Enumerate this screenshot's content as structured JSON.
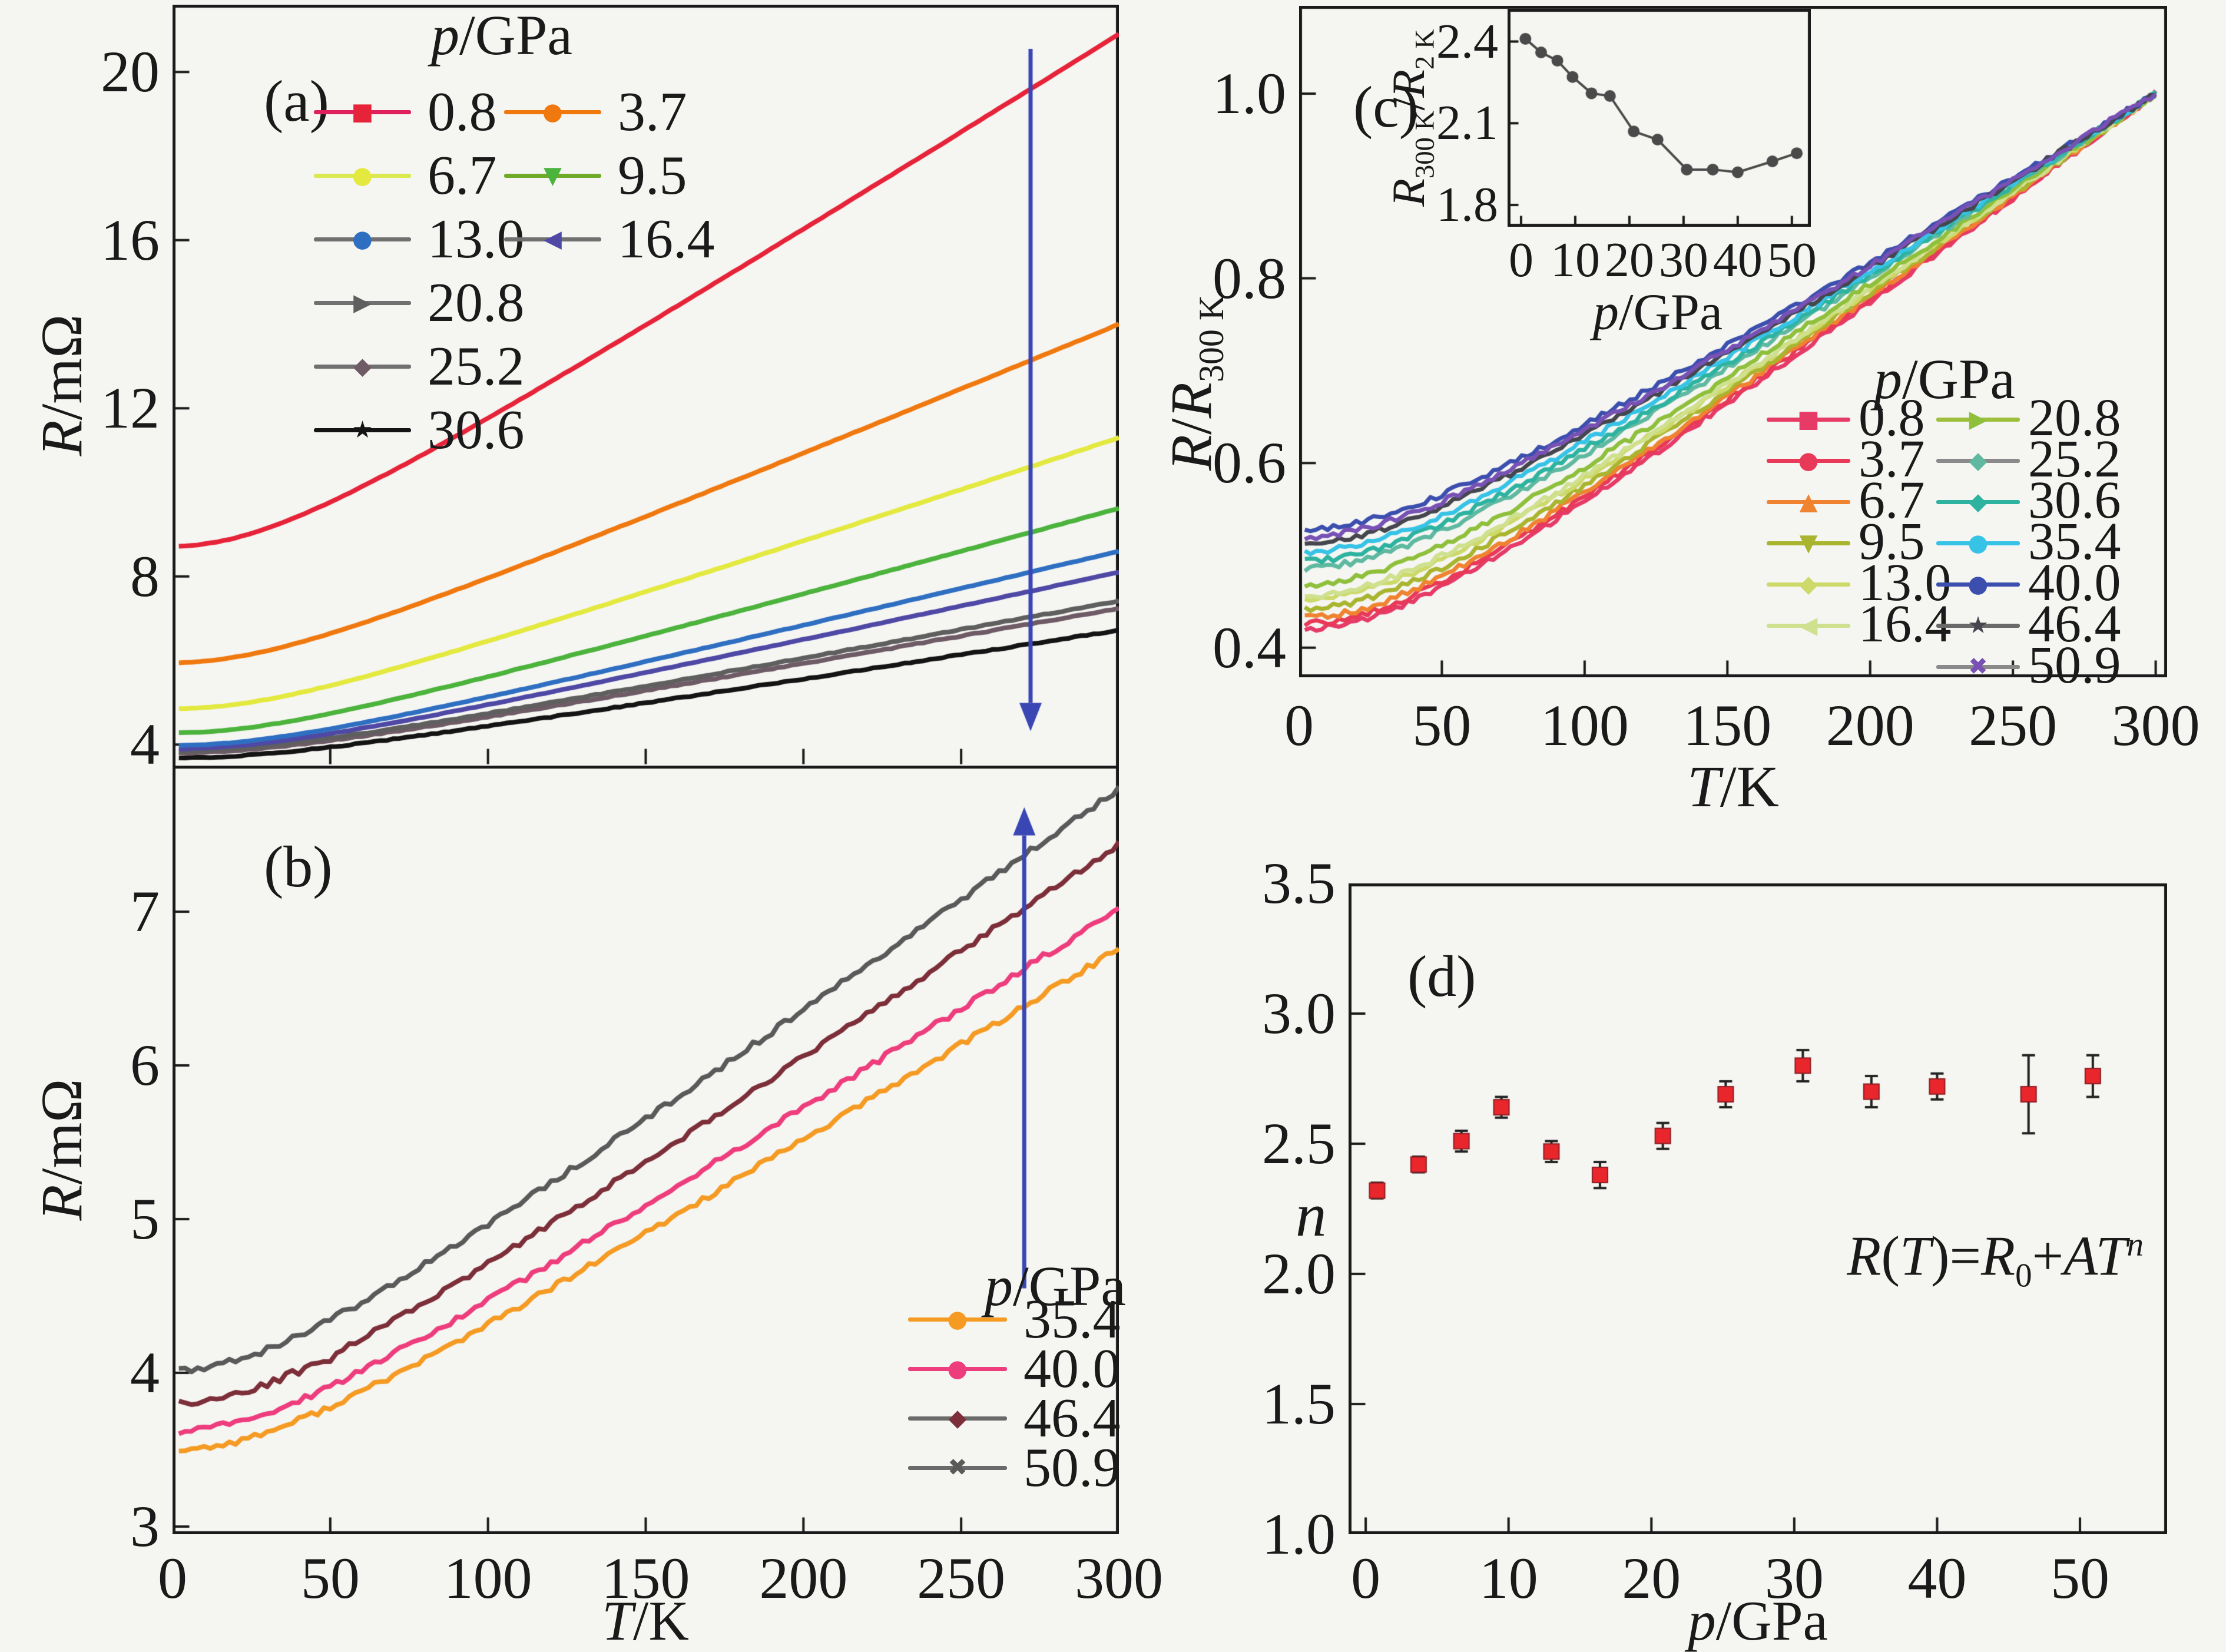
{
  "labels": {
    "panel_letters": {
      "a": "(a)",
      "b": "(b)",
      "c": "(c)",
      "d": "(d)"
    },
    "legend_title": {
      "var": "p",
      "unit": "/GPa"
    },
    "axis": {
      "R": "R",
      "mohm": "/mΩ",
      "slash": "/",
      "T": "T",
      "K": "/K",
      "p": "p",
      "GPa": "/GPa",
      "n": "n",
      "R300sub": "300 K",
      "R2sub": "2 K"
    },
    "formula": {
      "R1": "R",
      "lp": "(",
      "T1": "T",
      "rpeq": ")=",
      "R2": "R",
      "sub0": "0",
      "plus": "+",
      "A": "A",
      "T2": "T",
      "nexp": "n"
    }
  },
  "chart_data": [
    {
      "id": "a",
      "type": "line",
      "title": "",
      "xlabel": "T/K",
      "ylabel": "R/mΩ",
      "xlim": [
        0,
        300
      ],
      "ylim": [
        3.5,
        21.6
      ],
      "xticks": [
        {
          "v": 0,
          "t": ""
        },
        {
          "v": 50,
          "t": ""
        },
        {
          "v": 100,
          "t": ""
        },
        {
          "v": 150,
          "t": ""
        },
        {
          "v": 200,
          "t": ""
        },
        {
          "v": 250,
          "t": ""
        },
        {
          "v": 300,
          "t": ""
        }
      ],
      "yticks": [
        {
          "v": 4,
          "t": "4"
        },
        {
          "v": 8,
          "t": "8"
        },
        {
          "v": 12,
          "t": "12"
        },
        {
          "v": 16,
          "t": "16"
        },
        {
          "v": 20,
          "t": "20"
        }
      ],
      "legend_title": "p/GPa",
      "series": [
        {
          "name": "0.8",
          "color": "#e62339",
          "legend_line": "#e0205c",
          "marker": "■",
          "R_2K": 8.72,
          "R_300K": 20.9
        },
        {
          "name": "3.7",
          "color": "#f0790f",
          "legend_line": "#f0790f",
          "marker": "●",
          "R_2K": 5.95,
          "R_300K": 14.0
        },
        {
          "name": "6.7",
          "color": "#e3e93e",
          "legend_line": "#d9e94f",
          "marker": "●",
          "R_2K": 4.85,
          "R_300K": 11.3
        },
        {
          "name": "9.5",
          "color": "#4cb33c",
          "legend_line": "#6faa28",
          "marker": "▼",
          "R_2K": 4.28,
          "R_300K": 9.62
        },
        {
          "name": "13.0",
          "color": "#2f6fc2",
          "legend_line": "#707070",
          "marker": "●",
          "R_2K": 3.98,
          "R_300K": 8.6
        },
        {
          "name": "16.4",
          "color": "#4f49a5",
          "legend_line": "#707070",
          "marker": "◀",
          "R_2K": 3.9,
          "R_300K": 8.1
        },
        {
          "name": "20.8",
          "color": "#5f5f5f",
          "legend_line": "#707070",
          "marker": "▶",
          "R_2K": 3.85,
          "R_300K": 7.42
        },
        {
          "name": "25.2",
          "color": "#6e5b66",
          "legend_line": "#707070",
          "marker": "◆",
          "R_2K": 3.8,
          "R_300K": 7.24
        },
        {
          "name": "30.6",
          "color": "#141414",
          "legend_line": "#141414",
          "marker": "★",
          "R_2K": 3.68,
          "R_300K": 6.72
        }
      ],
      "arrow": {
        "T": 272,
        "from": 20.55,
        "to": 4.32,
        "direction": "down",
        "color": "#3a46b4"
      }
    },
    {
      "id": "b",
      "type": "line",
      "title": "",
      "xlabel": "T/K",
      "ylabel": "R/mΩ",
      "xlim": [
        0,
        300
      ],
      "ylim": [
        2.95,
        7.95
      ],
      "xticks": [
        {
          "v": 0,
          "t": "0"
        },
        {
          "v": 50,
          "t": "50"
        },
        {
          "v": 100,
          "t": "100"
        },
        {
          "v": 150,
          "t": "150"
        },
        {
          "v": 200,
          "t": "200"
        },
        {
          "v": 250,
          "t": "250"
        },
        {
          "v": 300,
          "t": "300"
        }
      ],
      "yticks": [
        {
          "v": 3,
          "t": "3"
        },
        {
          "v": 4,
          "t": "4"
        },
        {
          "v": 5,
          "t": "5"
        },
        {
          "v": 6,
          "t": "6"
        },
        {
          "v": 7,
          "t": "7"
        }
      ],
      "legend_title": "p/GPa",
      "series": [
        {
          "name": "35.4",
          "color": "#f59b24",
          "legend_line": "#f59b24",
          "marker": "●",
          "R_2K": 3.5,
          "R_300K": 6.76
        },
        {
          "name": "40.0",
          "color": "#ee3d7d",
          "legend_line": "#ee3d7d",
          "marker": "●",
          "R_2K": 3.62,
          "R_300K": 7.02
        },
        {
          "name": "46.4",
          "color": "#7d2f39",
          "legend_line": "#6a6a6a",
          "marker": "◆",
          "R_2K": 3.8,
          "R_300K": 7.44,
          "spiky": true
        },
        {
          "name": "50.9",
          "color": "#5a5a5a",
          "legend_line": "#6a6a6a",
          "marker": "✖",
          "R_2K": 4.02,
          "R_300K": 7.8
        }
      ],
      "arrow": {
        "T": 270,
        "from": 4.55,
        "to": 7.68,
        "direction": "up",
        "color": "#3a46b4"
      }
    },
    {
      "id": "c",
      "type": "line",
      "title": "",
      "xlabel": "T/K",
      "ylabel": "R/R300K",
      "xlim": [
        0,
        304
      ],
      "ylim": [
        0.368,
        1.095
      ],
      "xticks": [
        {
          "v": 0,
          "t": "0"
        },
        {
          "v": 50,
          "t": "50"
        },
        {
          "v": 100,
          "t": "100"
        },
        {
          "v": 150,
          "t": "150"
        },
        {
          "v": 200,
          "t": "200"
        },
        {
          "v": 250,
          "t": "250"
        },
        {
          "v": 300,
          "t": "300"
        }
      ],
      "yticks": [
        {
          "v": 0.4,
          "t": "0.4"
        },
        {
          "v": 0.6,
          "t": "0.6"
        },
        {
          "v": 0.8,
          "t": "0.8"
        },
        {
          "v": 1.0,
          "t": "1.0"
        }
      ],
      "legend_title": "p/GPa",
      "series": [
        {
          "name": "0.8",
          "color": "#e63a67",
          "legend_line": "#e63a67",
          "marker": "■",
          "R_norm_2K": 0.42
        },
        {
          "name": "3.7",
          "color": "#e83a58",
          "legend_line": "#e83a58",
          "marker": "●",
          "R_norm_2K": 0.426
        },
        {
          "name": "6.7",
          "color": "#ef8330",
          "legend_line": "#ef8330",
          "marker": "▲",
          "R_norm_2K": 0.432
        },
        {
          "name": "9.5",
          "color": "#a9b52f",
          "legend_line": "#a9b52f",
          "marker": "▼",
          "R_norm_2K": 0.442
        },
        {
          "name": "13.0",
          "color": "#cdd969",
          "legend_line": "#cdd969",
          "marker": "◆",
          "R_norm_2K": 0.452
        },
        {
          "name": "16.4",
          "color": "#cfe08e",
          "legend_line": "#cfe08e",
          "marker": "◀",
          "R_norm_2K": 0.456
        },
        {
          "name": "20.8",
          "color": "#8fc03c",
          "legend_line": "#9ebf3b",
          "marker": "▶",
          "R_norm_2K": 0.468
        },
        {
          "name": "25.2",
          "color": "#5fb9a1",
          "legend_line": "#8a8a8a",
          "marker": "◆",
          "R_norm_2K": 0.486
        },
        {
          "name": "30.6",
          "color": "#2eb3a0",
          "legend_line": "#2eb3a0",
          "marker": "◆",
          "R_norm_2K": 0.494
        },
        {
          "name": "35.4",
          "color": "#37c3e6",
          "legend_line": "#37c3e6",
          "marker": "●",
          "R_norm_2K": 0.504
        },
        {
          "name": "40.0",
          "color": "#3c4fae",
          "legend_line": "#3c4fae",
          "marker": "●",
          "R_norm_2K": 0.528
        },
        {
          "name": "46.4",
          "color": "#46464e",
          "legend_line": "#6a6a6a",
          "marker": "★",
          "R_norm_2K": 0.514
        },
        {
          "name": "50.9",
          "color": "#7851b5",
          "legend_line": "#8a8a8a",
          "marker": "✖",
          "R_norm_2K": 0.52
        }
      ]
    },
    {
      "id": "c_inset",
      "type": "line",
      "title": "",
      "xlabel": "p/GPa",
      "ylabel": "R300K/R2K",
      "xlim": [
        -2.5,
        53.5
      ],
      "ylim": [
        1.72,
        2.52
      ],
      "xticks": [
        {
          "v": 0,
          "t": "0"
        },
        {
          "v": 10,
          "t": "10"
        },
        {
          "v": 20,
          "t": "20"
        },
        {
          "v": 30,
          "t": "30"
        },
        {
          "v": 40,
          "t": "40"
        },
        {
          "v": 50,
          "t": "50"
        }
      ],
      "yticks": [
        {
          "v": 1.8,
          "t": "1.8"
        },
        {
          "v": 2.1,
          "t": "2.1"
        },
        {
          "v": 2.4,
          "t": "2.4"
        }
      ],
      "color": "#4a4a4a",
      "x": [
        0.8,
        3.7,
        6.7,
        9.5,
        13.0,
        16.4,
        20.8,
        25.2,
        30.6,
        35.4,
        40.0,
        46.4,
        50.9
      ],
      "y": [
        2.41,
        2.36,
        2.33,
        2.27,
        2.21,
        2.2,
        2.07,
        2.04,
        1.93,
        1.93,
        1.92,
        1.96,
        1.99
      ]
    },
    {
      "id": "d",
      "type": "scatter",
      "title": "",
      "xlabel": "p/GPa",
      "ylabel": "n",
      "xlim": [
        -1.2,
        56.1
      ],
      "ylim": [
        1.0,
        3.5
      ],
      "xticks": [
        {
          "v": 0,
          "t": "0"
        },
        {
          "v": 10,
          "t": "10"
        },
        {
          "v": 20,
          "t": "20"
        },
        {
          "v": 30,
          "t": "30"
        },
        {
          "v": 40,
          "t": "40"
        },
        {
          "v": 50,
          "t": "50"
        }
      ],
      "yticks": [
        {
          "v": 1.0,
          "t": "1.0"
        },
        {
          "v": 1.5,
          "t": "1.5"
        },
        {
          "v": 2.0,
          "t": "2.0"
        },
        {
          "v": 2.5,
          "t": "2.5"
        },
        {
          "v": 3.0,
          "t": "3.0"
        },
        {
          "v": 3.5,
          "t": "3.5"
        }
      ],
      "marker_color": "#e8262c",
      "annotation": "R(T)=R0+AT^n",
      "x": [
        0.8,
        3.7,
        6.7,
        9.5,
        13.0,
        16.4,
        20.8,
        25.2,
        30.6,
        35.4,
        40.0,
        46.4,
        50.9
      ],
      "y": [
        2.32,
        2.42,
        2.51,
        2.64,
        2.47,
        2.38,
        2.53,
        2.69,
        2.8,
        2.7,
        2.72,
        2.69,
        2.76
      ],
      "yerr": [
        0.03,
        0.03,
        0.04,
        0.04,
        0.04,
        0.05,
        0.05,
        0.05,
        0.06,
        0.06,
        0.05,
        0.15,
        0.08
      ]
    }
  ]
}
